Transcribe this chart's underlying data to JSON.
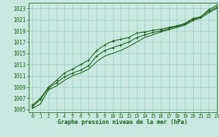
{
  "xlabel": "Graphe pression niveau de la mer (hPa)",
  "xlim": [
    -0.5,
    23
  ],
  "ylim": [
    1004.5,
    1024.0
  ],
  "yticks": [
    1005,
    1007,
    1009,
    1011,
    1013,
    1015,
    1017,
    1019,
    1021,
    1023
  ],
  "xticks": [
    0,
    1,
    2,
    3,
    4,
    5,
    6,
    7,
    8,
    9,
    10,
    11,
    12,
    13,
    14,
    15,
    16,
    17,
    18,
    19,
    20,
    21,
    22,
    23
  ],
  "bg_color": "#c8e8e0",
  "grid_color": "#99ccbb",
  "line_color": "#1a5c1a",
  "series_upper": [
    1005.8,
    1007.0,
    1009.0,
    1010.2,
    1011.5,
    1012.2,
    1013.0,
    1013.8,
    1015.5,
    1016.5,
    1017.2,
    1017.5,
    1017.8,
    1018.6,
    1018.8,
    1019.1,
    1019.3,
    1019.6,
    1019.9,
    1020.3,
    1021.2,
    1021.5,
    1022.8,
    1023.5
  ],
  "series_mid": [
    1005.5,
    1006.8,
    1008.8,
    1009.8,
    1010.8,
    1011.5,
    1012.0,
    1012.8,
    1014.5,
    1015.5,
    1016.0,
    1016.5,
    1017.0,
    1017.8,
    1018.3,
    1018.7,
    1019.0,
    1019.4,
    1019.8,
    1020.2,
    1021.0,
    1021.5,
    1022.5,
    1023.2
  ],
  "series_lower": [
    1005.2,
    1006.0,
    1008.5,
    1009.2,
    1010.2,
    1011.0,
    1011.5,
    1012.2,
    1013.5,
    1014.5,
    1015.0,
    1015.5,
    1016.2,
    1017.0,
    1017.8,
    1018.3,
    1018.8,
    1019.2,
    1019.6,
    1020.0,
    1020.8,
    1021.3,
    1022.2,
    1023.0
  ],
  "ytick_fontsize": 5.5,
  "xtick_fontsize": 5.0,
  "xlabel_fontsize": 6.0
}
